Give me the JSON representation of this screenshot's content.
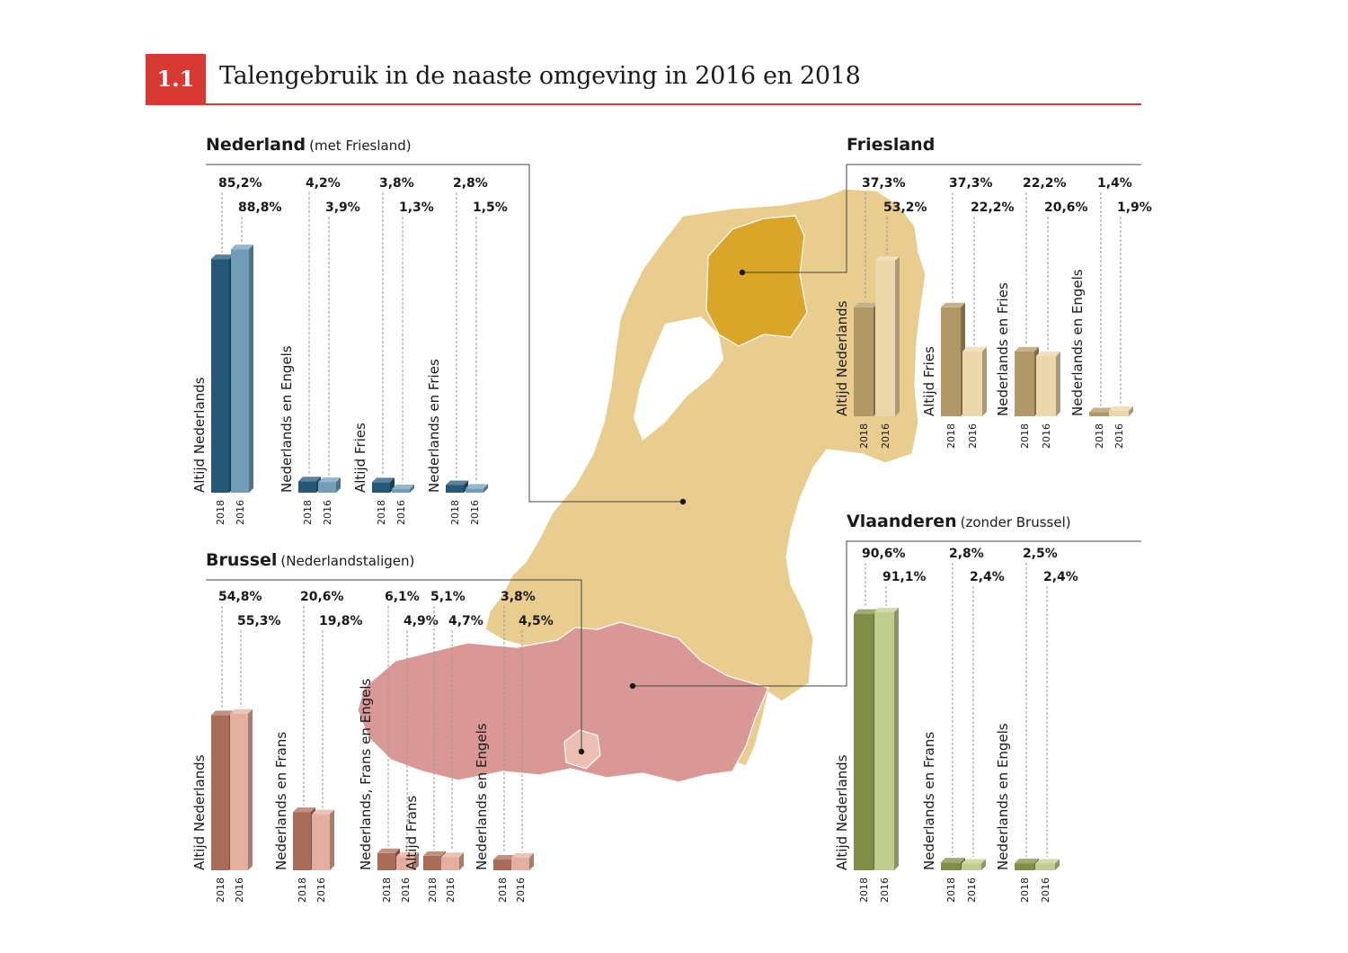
{
  "header": {
    "number": "1.1",
    "title": "Talengebruik in de naaste omgeving in 2016 en 2018"
  },
  "colors": {
    "accent": "#d63a32",
    "nederland": "#2f6f98",
    "friesland": "#e3c384",
    "vlaanderen": "#a3b55a",
    "brussel": "#d98a72",
    "map_netherlands": "#e8cd8e",
    "map_friesland": "#d9a62a",
    "map_vlaanderen": "#d99896",
    "map_brussel": "#ecbfb5"
  },
  "chart_data": [
    {
      "type": "bar",
      "title": "Nederland",
      "subtitle": "(met Friesland)",
      "categories": [
        "Altijd Nederlands",
        "Nederlands en Engels",
        "Altijd Fries",
        "Nederlands en Fries"
      ],
      "series": [
        {
          "name": "2018",
          "values": [
            85.2,
            4.2,
            3.8,
            2.8
          ],
          "labels": [
            "85,2%",
            "4,2%",
            "3,8%",
            "2,8%"
          ]
        },
        {
          "name": "2016",
          "values": [
            88.8,
            3.9,
            1.3,
            1.5
          ],
          "labels": [
            "88,8%",
            "3,9%",
            "1,3%",
            "1,5%"
          ]
        }
      ],
      "ylim": [
        0,
        100
      ]
    },
    {
      "type": "bar",
      "title": "Friesland",
      "subtitle": "",
      "categories": [
        "Altijd Nederlands",
        "Altijd Fries",
        "Nederlands en Fries",
        "Nederlands en Engels"
      ],
      "series": [
        {
          "name": "2018",
          "values": [
            37.3,
            37.3,
            22.2,
            1.4
          ],
          "labels": [
            "37,3%",
            "37,3%",
            "22,2%",
            "1,4%"
          ]
        },
        {
          "name": "2016",
          "values": [
            53.2,
            22.2,
            20.6,
            1.9
          ],
          "labels": [
            "53,2%",
            "22,2%",
            "20,6%",
            "1,9%"
          ]
        }
      ],
      "ylim": [
        0,
        100
      ]
    },
    {
      "type": "bar",
      "title": "Brussel",
      "subtitle": "(Nederlandstaligen)",
      "categories": [
        "Altijd Nederlands",
        "Nederlands en Frans",
        "Nederlands, Frans en Engels",
        "Altijd Frans",
        "Nederlands en Engels"
      ],
      "series": [
        {
          "name": "2018",
          "values": [
            54.8,
            20.6,
            6.1,
            5.1,
            3.8
          ],
          "labels": [
            "54,8%",
            "20,6%",
            "6,1%",
            "5,1%",
            "3,8%"
          ]
        },
        {
          "name": "2016",
          "values": [
            55.3,
            19.8,
            4.9,
            4.7,
            4.5
          ],
          "labels": [
            "55,3%",
            "19,8%",
            "4,9%",
            "4,7%",
            "4,5%"
          ]
        }
      ],
      "ylim": [
        0,
        100
      ]
    },
    {
      "type": "bar",
      "title": "Vlaanderen",
      "subtitle": "(zonder Brussel)",
      "categories": [
        "Altijd Nederlands",
        "Nederlands en Frans",
        "Nederlands en Engels"
      ],
      "series": [
        {
          "name": "2018",
          "values": [
            90.6,
            2.8,
            2.5
          ],
          "labels": [
            "90,6%",
            "2,8%",
            "2,5%"
          ]
        },
        {
          "name": "2016",
          "values": [
            91.1,
            2.4,
            2.4
          ],
          "labels": [
            "91,1%",
            "2,4%",
            "2,4%"
          ]
        }
      ],
      "ylim": [
        0,
        100
      ]
    }
  ]
}
